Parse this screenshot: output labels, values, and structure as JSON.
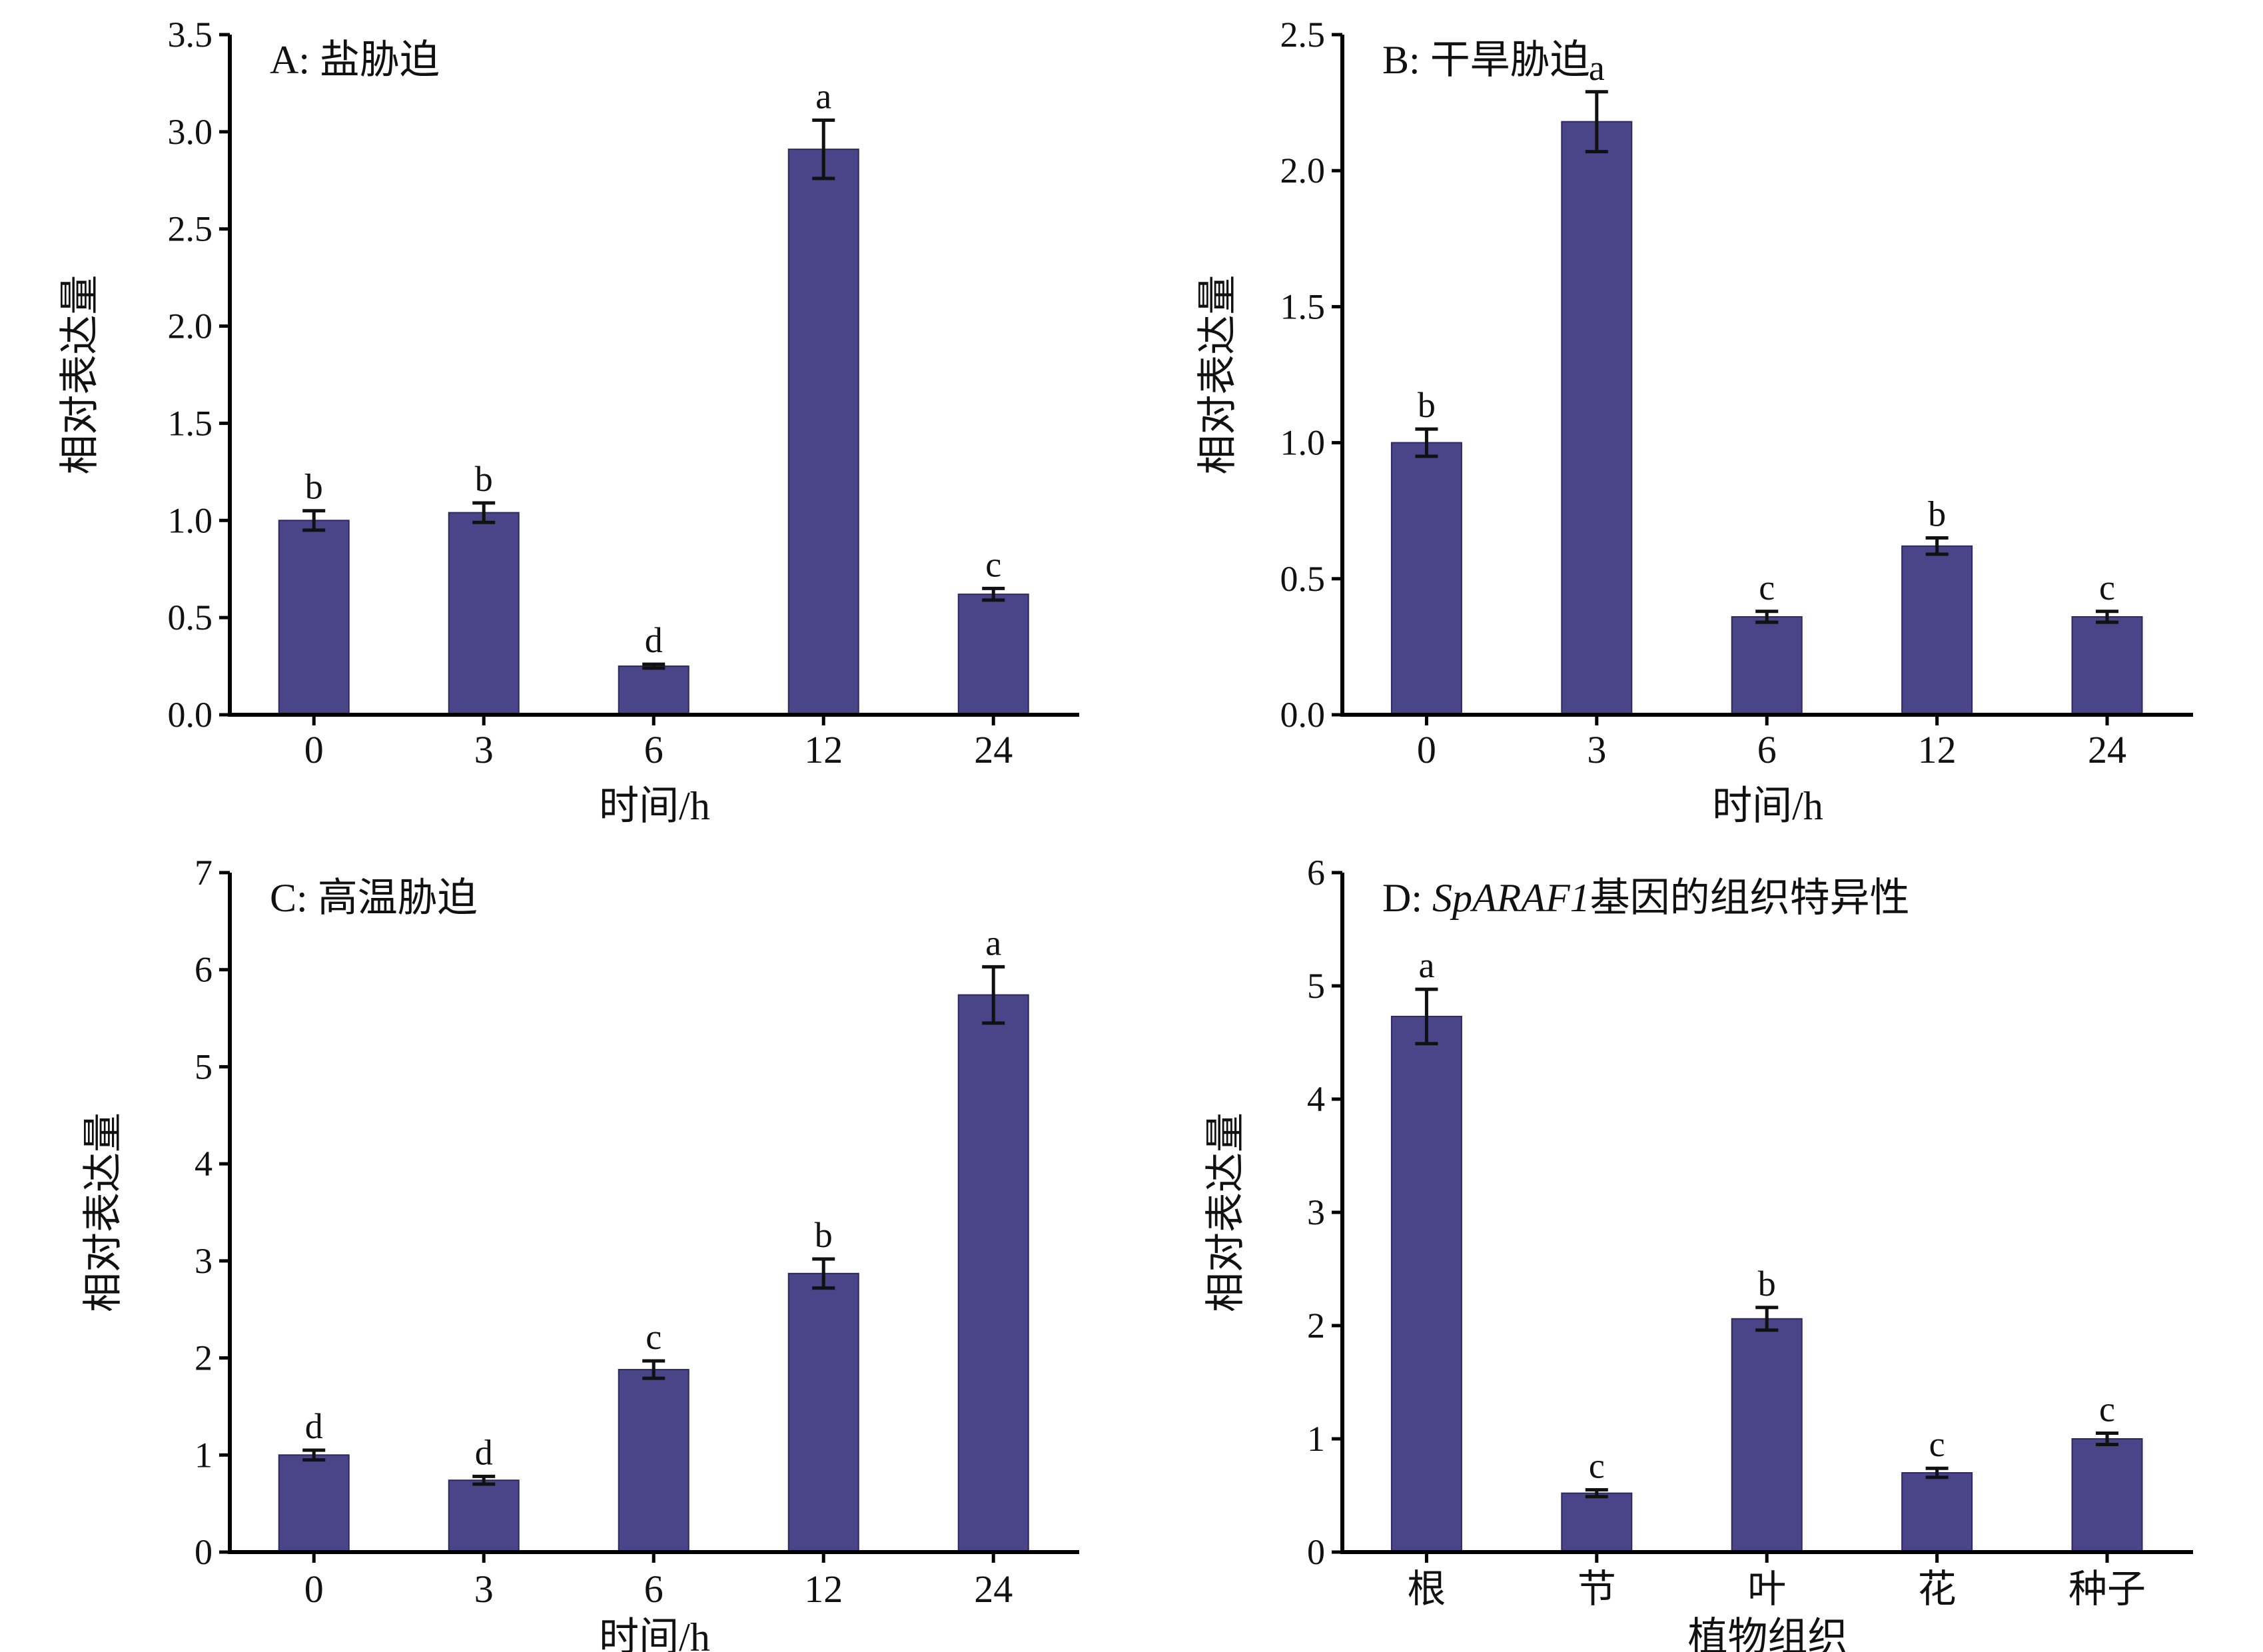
{
  "colors": {
    "bar": "#4a4588",
    "axis": "#000000",
    "text": "#111111"
  },
  "chart_data": [
    {
      "type": "bar",
      "title_prefix": "A: ",
      "title_gene": "",
      "title_suffix": "盐胁迫",
      "xlabel": "时间/h",
      "ylabel": "相对表达量",
      "categories": [
        "0",
        "3",
        "6",
        "12",
        "24"
      ],
      "values": [
        1.0,
        1.04,
        0.25,
        2.91,
        0.62
      ],
      "errors": [
        0.05,
        0.05,
        0.01,
        0.15,
        0.03
      ],
      "significance": [
        "b",
        "b",
        "d",
        "a",
        "c"
      ],
      "ylim": [
        0,
        3.5
      ],
      "yticks": [
        "0.0",
        "0.5",
        "1.0",
        "1.5",
        "2.0",
        "2.5",
        "3.0",
        "3.5"
      ]
    },
    {
      "type": "bar",
      "title_prefix": "B: ",
      "title_gene": "",
      "title_suffix": "干旱胁迫",
      "xlabel": "时间/h",
      "ylabel": "相对表达量",
      "categories": [
        "0",
        "3",
        "6",
        "12",
        "24"
      ],
      "values": [
        1.0,
        2.18,
        0.36,
        0.62,
        0.36
      ],
      "errors": [
        0.05,
        0.11,
        0.02,
        0.03,
        0.02
      ],
      "significance": [
        "b",
        "a",
        "c",
        "b",
        "c"
      ],
      "ylim": [
        0,
        2.5
      ],
      "yticks": [
        "0.0",
        "0.5",
        "1.0",
        "1.5",
        "2.0",
        "2.5"
      ]
    },
    {
      "type": "bar",
      "title_prefix": "C: ",
      "title_gene": "",
      "title_suffix": "高温胁迫",
      "xlabel": "时间/h",
      "ylabel": "相对表达量",
      "categories": [
        "0",
        "3",
        "6",
        "12",
        "24"
      ],
      "values": [
        1.0,
        0.74,
        1.88,
        2.87,
        5.74
      ],
      "errors": [
        0.05,
        0.04,
        0.09,
        0.15,
        0.29
      ],
      "significance": [
        "d",
        "d",
        "c",
        "b",
        "a"
      ],
      "ylim": [
        0,
        7
      ],
      "yticks": [
        "0",
        "1",
        "2",
        "3",
        "4",
        "5",
        "6",
        "7"
      ]
    },
    {
      "type": "bar",
      "title_prefix": "D: ",
      "title_gene": "SpARAF1",
      "title_suffix": "基因的组织特异性",
      "xlabel": "植物组织",
      "ylabel": "相对表达量",
      "categories": [
        "根",
        "节",
        "叶",
        "花",
        "种子"
      ],
      "values": [
        4.73,
        0.52,
        2.06,
        0.7,
        1.0
      ],
      "errors": [
        0.24,
        0.03,
        0.1,
        0.04,
        0.05
      ],
      "significance": [
        "a",
        "c",
        "b",
        "c",
        "c"
      ],
      "ylim": [
        0,
        6
      ],
      "yticks": [
        "0",
        "1",
        "2",
        "3",
        "4",
        "5",
        "6"
      ]
    }
  ]
}
